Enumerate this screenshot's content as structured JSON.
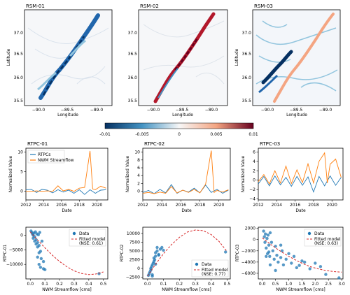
{
  "colors": {
    "blue": "#1f77b4",
    "orange": "#ff7f0e",
    "fit": "#d62728",
    "diverge_neg": "#053061",
    "diverge_mid": "#f7f7f7",
    "diverge_pos": "#67001f"
  },
  "maps": [
    {
      "title": "RSM-01",
      "xlabel": "Longitude",
      "ylabel": "Latitude",
      "xticks": [
        "−90.0",
        "−89.5",
        "−89.0"
      ],
      "yticks": [
        "37.0",
        "36.5",
        "36.0",
        "35.5"
      ]
    },
    {
      "title": "RSM-02",
      "xlabel": "Longitude",
      "ylabel": "",
      "xticks": [
        "−90.0",
        "−89.5",
        "−89.0"
      ],
      "yticks": [
        "37.0",
        "36.5",
        "36.0",
        "35.5"
      ]
    },
    {
      "title": "RSM-03",
      "xlabel": "Longitude",
      "ylabel": "Latitude",
      "xticks": [
        "−90.0",
        "−89.5",
        "−89.0"
      ],
      "yticks": [
        "37.0",
        "36.5",
        "36.0",
        "35.5"
      ]
    }
  ],
  "colorbar": {
    "ticks": [
      "-0.01",
      "-0.005",
      "0",
      "0.005",
      "0.01"
    ],
    "range": [
      -0.01,
      0.01
    ]
  },
  "chart_data": [
    {
      "type": "line",
      "title": "RTPC-01",
      "xlabel": "Date",
      "ylabel": "Normalized Value",
      "xlim": [
        2012,
        2021.2
      ],
      "ylim": [
        -2.2,
        11
      ],
      "xticks": [
        2012,
        2014,
        2016,
        2018,
        2020
      ],
      "xticklabels": [
        "2012",
        "2014",
        "2016",
        "2018",
        "2020"
      ],
      "yticks": [
        0,
        5,
        10
      ],
      "yticklabels": [
        "0",
        "5",
        "10"
      ],
      "legend": "top-left",
      "series": [
        {
          "name": "RTPCs",
          "x": [
            2012,
            2012.6,
            2013.2,
            2013.8,
            2014.4,
            2015,
            2015.6,
            2016.2,
            2016.8,
            2017.4,
            2018,
            2018.6,
            2019.2,
            2019.8,
            2020.4,
            2021
          ],
          "y": [
            0.4,
            0.5,
            -0.3,
            0.5,
            0.3,
            -0.4,
            0.4,
            -0.2,
            0.3,
            -0.5,
            0.4,
            -0.8,
            0.4,
            -0.5,
            0.3,
            0.4
          ]
        },
        {
          "name": "NWM Streamflow",
          "x": [
            2012,
            2012.6,
            2013.2,
            2013.8,
            2014.4,
            2015,
            2015.6,
            2016.2,
            2016.8,
            2017.4,
            2018,
            2018.6,
            2019.2,
            2019.5,
            2019.8,
            2020.4,
            2021
          ],
          "y": [
            0,
            0,
            0.1,
            0,
            0.1,
            0,
            1.4,
            0.1,
            0.5,
            0,
            0.8,
            1.0,
            10.3,
            0.6,
            0.4,
            1.3,
            0.8
          ]
        }
      ]
    },
    {
      "type": "line",
      "title": "RTPC-02",
      "xlabel": "Date",
      "ylabel": "Normalized Value",
      "xlim": [
        2012,
        2021.2
      ],
      "ylim": [
        -2.2,
        11
      ],
      "xticks": [
        2012,
        2014,
        2016,
        2018,
        2020
      ],
      "xticklabels": [
        "2012",
        "2014",
        "2016",
        "2018",
        "2020"
      ],
      "yticks": [
        0,
        2,
        4,
        6,
        8,
        10
      ],
      "yticklabels": [
        "0",
        "2",
        "4",
        "6",
        "8",
        "10"
      ],
      "legend": "",
      "series": [
        {
          "name": "RTPCs",
          "x": [
            2012,
            2012.6,
            2013.2,
            2013.8,
            2014.4,
            2015,
            2015.6,
            2016.2,
            2016.8,
            2017.4,
            2018,
            2018.6,
            2019.2,
            2019.8,
            2020.4,
            2021
          ],
          "y": [
            -0.3,
            0.2,
            -0.6,
            0.5,
            -0.4,
            1.7,
            -0.5,
            0.3,
            -0.2,
            0.8,
            -0.4,
            1.6,
            -0.3,
            0.5,
            -0.5,
            0.3
          ]
        },
        {
          "name": "NWM Streamflow",
          "x": [
            2012,
            2012.6,
            2013.2,
            2013.8,
            2014.4,
            2015,
            2015.6,
            2016.2,
            2016.8,
            2017.4,
            2018,
            2018.6,
            2019.2,
            2019.5,
            2019.8,
            2020.4,
            2021
          ],
          "y": [
            -0.5,
            -0.3,
            -0.6,
            -0.2,
            -0.5,
            1.2,
            -0.4,
            0.3,
            -0.3,
            0.5,
            -0.4,
            1.8,
            10.4,
            -0.3,
            0.2,
            -0.2,
            0.4
          ]
        }
      ]
    },
    {
      "type": "line",
      "title": "RTPC-03",
      "xlabel": "Date",
      "ylabel": "Normalized Value",
      "xlim": [
        2012,
        2021.2
      ],
      "ylim": [
        -4.2,
        6.8
      ],
      "xticks": [
        2012,
        2014,
        2016,
        2018,
        2020
      ],
      "xticklabels": [
        "2012",
        "2014",
        "2016",
        "2018",
        "2020"
      ],
      "yticks": [
        -4,
        -2,
        0,
        2,
        4,
        6
      ],
      "yticklabels": [
        "−4",
        "−2",
        "0",
        "2",
        "4",
        "6"
      ],
      "legend": "",
      "series": [
        {
          "name": "RTPCs",
          "x": [
            2012,
            2012.6,
            2013.2,
            2013.8,
            2014.4,
            2015,
            2015.6,
            2016.2,
            2016.8,
            2017.4,
            2018,
            2018.6,
            2019.2,
            2019.8,
            2020.4,
            2021
          ],
          "y": [
            -0.8,
            0.8,
            -1.2,
            0.9,
            -1.0,
            0.6,
            -1.3,
            0.8,
            -1.1,
            0.7,
            -2.5,
            0.8,
            -1.2,
            0.9,
            -1.1,
            0.6
          ]
        },
        {
          "name": "NWM Streamflow",
          "x": [
            2012,
            2012.6,
            2013.2,
            2013.8,
            2014.4,
            2015,
            2015.6,
            2016.2,
            2016.8,
            2017.4,
            2018,
            2018.6,
            2019.2,
            2019.5,
            2019.8,
            2020.4,
            2021
          ],
          "y": [
            -0.3,
            1.2,
            -0.8,
            2.0,
            -0.6,
            3.0,
            -0.7,
            2.2,
            -0.5,
            3.5,
            -0.6,
            4.0,
            5.8,
            -0.6,
            3.4,
            4.5,
            0.6
          ]
        }
      ]
    },
    {
      "type": "scatter",
      "title": "",
      "xlabel": "NWM Streamflow [cms]",
      "ylabel": "RTPC-01",
      "xlim": [
        -0.03,
        0.53
      ],
      "ylim": [
        -15000,
        2800
      ],
      "xticks": [
        0,
        0.1,
        0.2,
        0.3,
        0.4,
        0.5
      ],
      "xticklabels": [
        "0.0",
        "0.1",
        "0.2",
        "0.3",
        "0.4",
        "0.5"
      ],
      "yticks": [
        -10000,
        -5000,
        0
      ],
      "yticklabels": [
        "−10000",
        "−5000",
        "0"
      ],
      "legend": "top-right",
      "points": {
        "name": "Data",
        "x": [
          0.005,
          0.01,
          0.015,
          0.02,
          0.02,
          0.025,
          0.03,
          0.03,
          0.035,
          0.04,
          0.04,
          0.045,
          0.05,
          0.05,
          0.055,
          0.06,
          0.06,
          0.065,
          0.07,
          0.075,
          0.08,
          0.09,
          0.09,
          0.1,
          0.47,
          0.05,
          0.06,
          0.07
        ],
        "y": [
          1500,
          1000,
          500,
          0,
          -1000,
          800,
          -500,
          -2000,
          1200,
          -1500,
          -3000,
          500,
          -2500,
          -4000,
          200,
          -3500,
          -6000,
          1000,
          -5500,
          -8000,
          -2000,
          -9000,
          -11500,
          -11800,
          -13200,
          -7500,
          -10000,
          -11000
        ]
      },
      "fit": {
        "name": "Fitted model\n(NSE: 0.61)",
        "x": [
          0,
          0.05,
          0.1,
          0.15,
          0.2,
          0.25,
          0.3,
          0.35,
          0.4,
          0.45,
          0.5
        ],
        "y": [
          1200,
          -1600,
          -4300,
          -6800,
          -9000,
          -10800,
          -12200,
          -13100,
          -13500,
          -13300,
          -12600
        ]
      }
    },
    {
      "type": "scatter",
      "title": "",
      "xlabel": "NWM Streamflow [cms]",
      "ylabel": "RTPC-02",
      "xlim": [
        -0.03,
        0.52
      ],
      "ylim": [
        -3000,
        11800
      ],
      "xticks": [
        0,
        0.1,
        0.2,
        0.3,
        0.4,
        0.5
      ],
      "xticklabels": [
        "0.0",
        "0.1",
        "0.2",
        "0.3",
        "0.4",
        "0.5"
      ],
      "yticks": [
        -2500,
        0,
        2500,
        5000,
        7500,
        10000
      ],
      "yticklabels": [
        "−2500",
        "0",
        "2500",
        "5000",
        "7500",
        "10000"
      ],
      "legend": "bottom-right",
      "points": {
        "name": "Data",
        "x": [
          0.005,
          0.01,
          0.015,
          0.02,
          0.02,
          0.025,
          0.03,
          0.03,
          0.035,
          0.04,
          0.04,
          0.045,
          0.05,
          0.05,
          0.06,
          0.06,
          0.07,
          0.08,
          0.09,
          0.1,
          0.49,
          0.03,
          0.05,
          0.07
        ],
        "y": [
          -2000,
          -1500,
          -1000,
          -500,
          0,
          500,
          1000,
          -2200,
          1500,
          2000,
          3000,
          2500,
          3500,
          4500,
          5000,
          6000,
          4000,
          5500,
          6000,
          5200,
          4700,
          -1800,
          1200,
          3800
        ]
      },
      "fit": {
        "name": "Fitted model\n(NSE: 0.77)",
        "x": [
          0,
          0.05,
          0.1,
          0.15,
          0.2,
          0.25,
          0.3,
          0.35,
          0.4,
          0.45,
          0.5
        ],
        "y": [
          -2200,
          1200,
          4200,
          6800,
          8900,
          10400,
          11000,
          10800,
          9700,
          7700,
          4800
        ]
      }
    },
    {
      "type": "scatter",
      "title": "",
      "xlabel": "NWM Streamflow [cms]",
      "ylabel": "RTPC-03",
      "xlim": [
        -0.15,
        3.05
      ],
      "ylim": [
        -7000,
        2200
      ],
      "xticks": [
        0,
        0.5,
        1.0,
        1.5,
        2.0,
        2.5,
        3.0
      ],
      "xticklabels": [
        "0.0",
        "0.5",
        "1.0",
        "1.5",
        "2.0",
        "2.5",
        "3.0"
      ],
      "yticks": [
        -6000,
        -4000,
        -2000,
        0,
        2000
      ],
      "yticklabels": [
        "−6000",
        "−4000",
        "−2000",
        "0",
        "2000"
      ],
      "legend": "top-right",
      "points": {
        "name": "Data",
        "x": [
          0.05,
          0.08,
          0.1,
          0.12,
          0.15,
          0.18,
          0.2,
          0.22,
          0.25,
          0.28,
          0.3,
          0.35,
          0.4,
          0.45,
          0.5,
          0.55,
          0.6,
          0.7,
          0.75,
          0.8,
          0.9,
          1.0,
          1.1,
          1.2,
          1.3,
          1.4,
          1.5,
          1.6,
          1.8,
          2.0,
          2.2,
          2.4,
          2.9,
          0.3,
          0.5,
          0.7,
          0.15,
          0.25
        ],
        "y": [
          1500,
          500,
          -500,
          1000,
          -1500,
          200,
          -2500,
          800,
          -1000,
          -3000,
          1200,
          -500,
          -2000,
          -3500,
          -1200,
          -2800,
          -4000,
          -3200,
          -2000,
          -4500,
          -3500,
          -2500,
          -4200,
          -3000,
          -5000,
          -4600,
          -3800,
          -4000,
          -5200,
          -4200,
          -4800,
          -6200,
          -6800,
          -4500,
          -5500,
          -1000,
          -3000,
          -2200
        ]
      },
      "fit": {
        "name": "Fitted model\n(NSE: 0.63)",
        "x": [
          0,
          0.3,
          0.6,
          0.9,
          1.2,
          1.5,
          1.8,
          2.1,
          2.4,
          2.7,
          3.0
        ],
        "y": [
          300,
          -800,
          -1800,
          -2700,
          -3500,
          -4200,
          -4800,
          -5200,
          -5500,
          -5700,
          -5800
        ]
      }
    }
  ]
}
